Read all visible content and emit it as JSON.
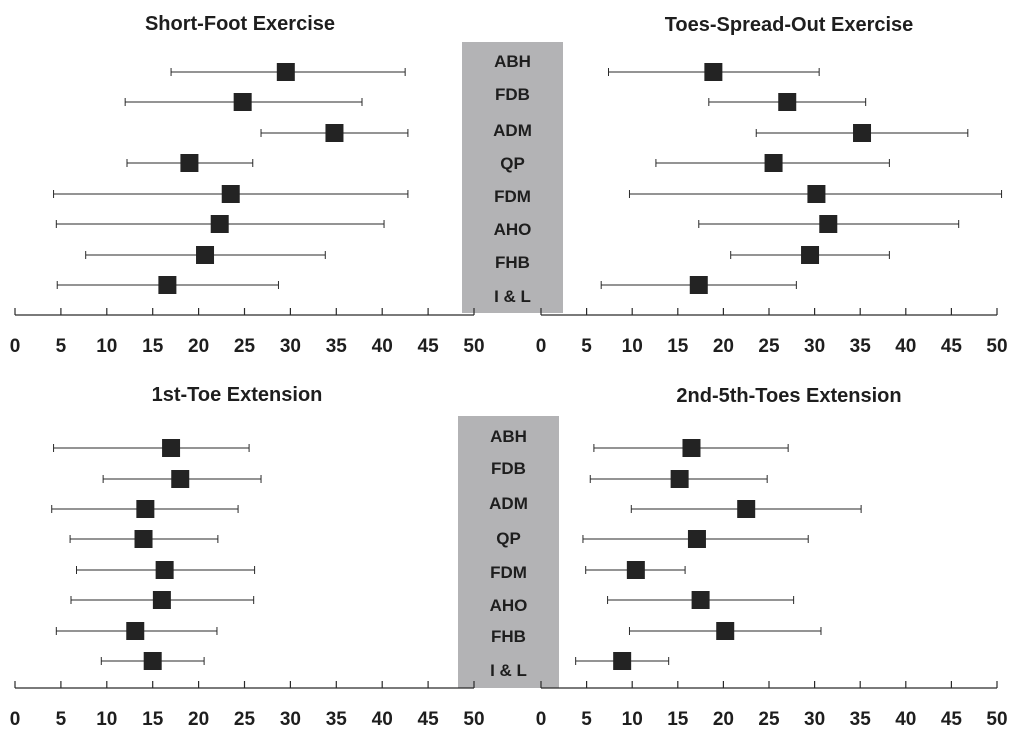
{
  "chart_data": [
    {
      "type": "forest",
      "title": "Short-Foot Exercise",
      "categories": [
        "ABH",
        "FDB",
        "ADM",
        "QP",
        "FDM",
        "AHO",
        "FHB",
        "I & L"
      ],
      "series": [
        {
          "values": [
            29.5,
            24.8,
            34.8,
            19,
            23.5,
            22.3,
            20.7,
            16.6
          ],
          "lower": [
            17,
            12,
            26.8,
            12.2,
            4.2,
            4.5,
            7.7,
            4.6
          ],
          "upper": [
            42.5,
            37.8,
            42.8,
            25.9,
            42.8,
            40.2,
            33.8,
            28.7
          ]
        }
      ],
      "xlim": [
        0,
        50
      ],
      "xticks": [
        0,
        5,
        10,
        15,
        20,
        25,
        30,
        35,
        40,
        45,
        50
      ]
    },
    {
      "type": "forest",
      "title": "Toes-Spread-Out Exercise",
      "categories": [
        "ABH",
        "FDB",
        "ADM",
        "QP",
        "FDM",
        "AHO",
        "FHB",
        "I & L"
      ],
      "series": [
        {
          "values": [
            18.9,
            27,
            35.2,
            25.5,
            30.2,
            31.5,
            29.5,
            17.3
          ],
          "lower": [
            7.4,
            18.4,
            23.6,
            12.6,
            9.7,
            17.3,
            20.8,
            6.6
          ],
          "upper": [
            30.5,
            35.6,
            46.8,
            38.2,
            50.5,
            45.8,
            38.2,
            28
          ]
        }
      ],
      "xlim": [
        0,
        50
      ],
      "xticks": [
        0,
        5,
        10,
        15,
        20,
        25,
        30,
        35,
        40,
        45,
        50
      ]
    },
    {
      "type": "forest",
      "title": "1st-Toe Extension",
      "categories": [
        "ABH",
        "FDB",
        "ADM",
        "QP",
        "FDM",
        "AHO",
        "FHB",
        "I & L"
      ],
      "series": [
        {
          "values": [
            17,
            18,
            14.2,
            14,
            16.3,
            16,
            13.1,
            15
          ],
          "lower": [
            4.2,
            9.6,
            4,
            6,
            6.7,
            6.1,
            4.5,
            9.4
          ],
          "upper": [
            25.5,
            26.8,
            24.3,
            22.1,
            26.1,
            26,
            22,
            20.6
          ]
        }
      ],
      "xlim": [
        0,
        50
      ],
      "xticks": [
        0,
        5,
        10,
        15,
        20,
        25,
        30,
        35,
        40,
        45,
        50
      ]
    },
    {
      "type": "forest",
      "title": "2nd-5th-Toes Extension",
      "categories": [
        "ABH",
        "FDB",
        "ADM",
        "QP",
        "FDM",
        "AHO",
        "FHB",
        "I & L"
      ],
      "series": [
        {
          "values": [
            16.5,
            15.2,
            22.5,
            17.1,
            10.4,
            17.5,
            20.2,
            8.9
          ],
          "lower": [
            5.8,
            5.4,
            9.9,
            4.6,
            4.9,
            7.3,
            9.7,
            3.8
          ],
          "upper": [
            27.1,
            24.8,
            35.1,
            29.3,
            15.8,
            27.7,
            30.7,
            14
          ]
        }
      ],
      "xlim": [
        0,
        50
      ],
      "xticks": [
        0,
        5,
        10,
        15,
        20,
        25,
        30,
        35,
        40,
        45,
        50
      ]
    }
  ],
  "colors": {
    "marker": "#232323",
    "line": "#2a2a2a",
    "label_band": "#b3b3b5",
    "text": "#1e1e1e"
  }
}
